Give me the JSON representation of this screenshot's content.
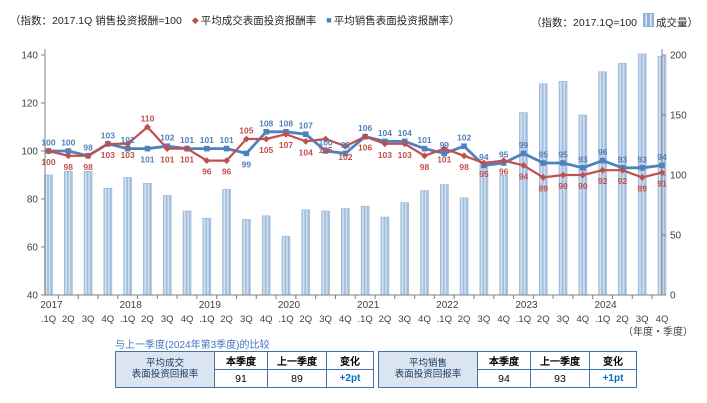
{
  "legend": {
    "left_prefix": "（指数：2017.1Q 销售投资报酬=100",
    "transaction_label": "平均成交表面投资报酬率",
    "asking_label": "平均销售表面投资报酬率）",
    "right_prefix": "（指数：2017.1Q=100",
    "volume_label": "成交量）"
  },
  "chart_data": {
    "type": "combo (bar volume + 2 line indices)",
    "index_base": "2017.1Q=100",
    "x_years": [
      "2017",
      "2018",
      "2019",
      "2020",
      "2021",
      "2022",
      "2023",
      "2024"
    ],
    "x_quarter_labels": [
      ".1Q",
      "2Q",
      "3Q",
      "4Q"
    ],
    "left_axis": {
      "min": 40,
      "max": 140,
      "step": 20
    },
    "right_axis": {
      "min": 0,
      "max": 200,
      "step": 50
    },
    "series": [
      {
        "name": "平均成交表面投资报酬率",
        "type": "line",
        "marker": "diamond",
        "axis": "left",
        "values": [
          100,
          98,
          98,
          103,
          103,
          110,
          101,
          101,
          96,
          96,
          105,
          105,
          107,
          104,
          105,
          102,
          106,
          103,
          103,
          98,
          101,
          98,
          95,
          96,
          94,
          89,
          90,
          90,
          92,
          92,
          89,
          91
        ]
      },
      {
        "name": "平均销售表面投资报酬率",
        "type": "line",
        "marker": "square",
        "axis": "left",
        "values": [
          100,
          100,
          98,
          103,
          101,
          101,
          102,
          101,
          101,
          101,
          99,
          108,
          108,
          107,
          100,
          99,
          106,
          104,
          104,
          101,
          99,
          102,
          94,
          95,
          99,
          95,
          95,
          93,
          96,
          93,
          93,
          94
        ]
      },
      {
        "name": "成交量",
        "type": "bar",
        "axis": "right",
        "values": [
          100,
          103,
          103,
          89,
          98,
          93,
          83,
          70,
          64,
          88,
          63,
          66,
          49,
          71,
          70,
          72,
          74,
          65,
          77,
          87,
          92,
          81,
          108,
          100,
          152,
          176,
          178,
          150,
          186,
          193,
          201,
          199
        ]
      }
    ],
    "legend_position": "top",
    "grid": "off"
  },
  "axis_note": "（年度・季度）",
  "comparison": {
    "note": "与上一季度(2024年第3季度)的比较",
    "col_headers": [
      "本季度",
      "上一季度",
      "变化"
    ],
    "tables": [
      {
        "row_label_line1": "平均成交",
        "row_label_line2": "表面投资回报率",
        "current": "91",
        "previous": "89",
        "change": "+2pt"
      },
      {
        "row_label_line1": "平均销售",
        "row_label_line2": "表面投资回报率",
        "current": "94",
        "previous": "93",
        "change": "+1pt"
      }
    ]
  },
  "colors": {
    "transaction": "#C0504D",
    "asking": "#4F81BD",
    "bar_edge": "#95B3D7",
    "bar_light": "#DCE8F5",
    "axis": "#808080",
    "tick_text": "#404040",
    "table_border": "#4472A8",
    "change_text": "#0070C0"
  }
}
